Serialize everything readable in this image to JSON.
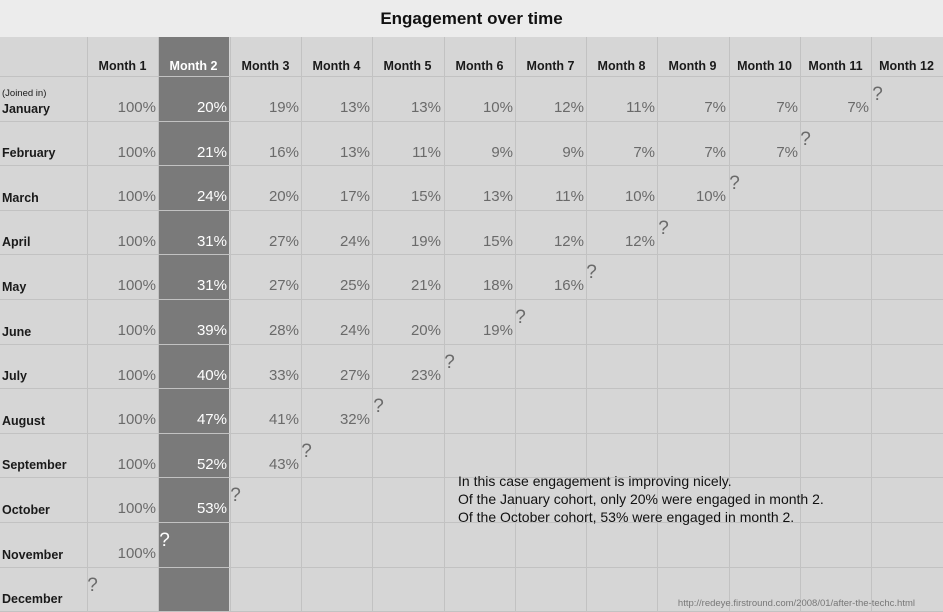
{
  "chart_data": {
    "type": "table",
    "title": "Engagement over time",
    "row_header_note": "(Joined in)",
    "columns": [
      "Month 1",
      "Month 2",
      "Month 3",
      "Month 4",
      "Month 5",
      "Month 6",
      "Month 7",
      "Month 8",
      "Month 9",
      "Month 10",
      "Month 11",
      "Month 12"
    ],
    "highlight_column": "Month 2",
    "unknown_marker": "?",
    "rows": [
      {
        "cohort": "January",
        "values": [
          "100%",
          "20%",
          "19%",
          "13%",
          "13%",
          "10%",
          "12%",
          "11%",
          "7%",
          "7%",
          "7%"
        ]
      },
      {
        "cohort": "February",
        "values": [
          "100%",
          "21%",
          "16%",
          "13%",
          "11%",
          "9%",
          "9%",
          "7%",
          "7%",
          "7%"
        ]
      },
      {
        "cohort": "March",
        "values": [
          "100%",
          "24%",
          "20%",
          "17%",
          "15%",
          "13%",
          "11%",
          "10%",
          "10%"
        ]
      },
      {
        "cohort": "April",
        "values": [
          "100%",
          "31%",
          "27%",
          "24%",
          "19%",
          "15%",
          "12%",
          "12%"
        ]
      },
      {
        "cohort": "May",
        "values": [
          "100%",
          "31%",
          "27%",
          "25%",
          "21%",
          "18%",
          "16%"
        ]
      },
      {
        "cohort": "June",
        "values": [
          "100%",
          "39%",
          "28%",
          "24%",
          "20%",
          "19%"
        ]
      },
      {
        "cohort": "July",
        "values": [
          "100%",
          "40%",
          "33%",
          "27%",
          "23%"
        ]
      },
      {
        "cohort": "August",
        "values": [
          "100%",
          "47%",
          "41%",
          "32%"
        ]
      },
      {
        "cohort": "September",
        "values": [
          "100%",
          "52%",
          "43%"
        ]
      },
      {
        "cohort": "October",
        "values": [
          "100%",
          "53%"
        ]
      },
      {
        "cohort": "November",
        "values": [
          "100%"
        ]
      },
      {
        "cohort": "December",
        "values": []
      }
    ],
    "annotation": [
      "In this case engagement is improving nicely.",
      "Of the January cohort, only 20% were engaged in month 2.",
      "Of the October cohort, 53% were engaged in month 2."
    ],
    "source": "http://redeye.firstround.com/2008/01/after-the-techc.html",
    "colors": {
      "background": "#d6d6d6",
      "title_bar": "#ececec",
      "highlight": "#7a7a7a",
      "value_text": "#6a6a6a"
    }
  }
}
